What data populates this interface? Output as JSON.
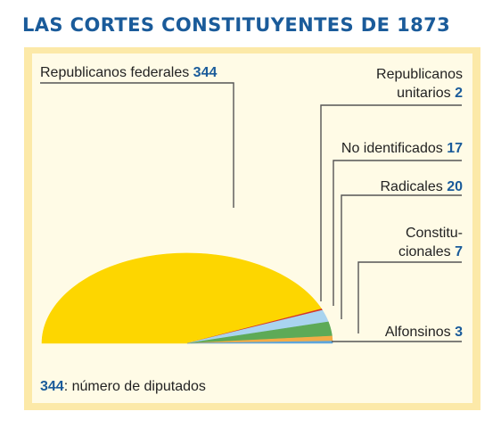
{
  "chart_data": {
    "type": "pie",
    "variant": "semicircle",
    "title": "LAS CORTES CONSTITUYENTES DE 1873",
    "slices": [
      {
        "label": "Republicanos federales",
        "value": 344,
        "color": "#fdd600"
      },
      {
        "label": "Republicanos unitarios",
        "value": 2,
        "color": "#d3362b"
      },
      {
        "label": "No identificados",
        "value": 17,
        "color": "#a9d4ef"
      },
      {
        "label": "Radicales",
        "value": 20,
        "color": "#5daa57"
      },
      {
        "label": "Constitucionales",
        "value": 7,
        "color": "#f4ac46"
      },
      {
        "label": "Alfonsinos",
        "value": 3,
        "color": "#5ea6dc"
      }
    ],
    "labels": [
      {
        "lines": [
          "Republicanos federales"
        ],
        "value": "344"
      },
      {
        "lines": [
          "Republicanos",
          "unitarios"
        ],
        "value": "2"
      },
      {
        "lines": [
          "No identificados"
        ],
        "value": "17"
      },
      {
        "lines": [
          "Radicales"
        ],
        "value": "20"
      },
      {
        "lines": [
          "Constitu-",
          "cionales"
        ],
        "value": "7"
      },
      {
        "lines": [
          "Alfonsinos"
        ],
        "value": "3"
      }
    ],
    "note": {
      "value": "344",
      "text": ": número de diputados"
    }
  },
  "colors": {
    "frame": "#fce9a8",
    "panel": "#fffbe6",
    "title": "#1a5b9a",
    "number": "#1a5b9a",
    "text": "#222222",
    "leader": "#555555"
  }
}
